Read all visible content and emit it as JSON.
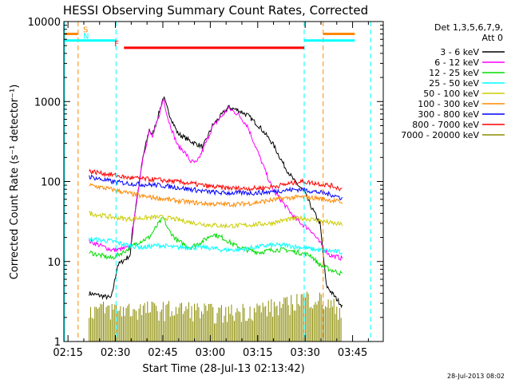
{
  "chart_data": {
    "type": "line",
    "title": "HESSI Observing Summary Count Rates, Corrected",
    "xlabel": "Start Time (28-Jul-13 02:13:42)",
    "ylabel": "Corrected Count Rate (s⁻¹ detector⁻¹)",
    "yscale": "log",
    "ylim": [
      1,
      10000
    ],
    "xlim_minutes": [
      0,
      101
    ],
    "xticks": [
      {
        "label": "02:15",
        "minute": 1.3
      },
      {
        "label": "02:30",
        "minute": 16.3
      },
      {
        "label": "02:45",
        "minute": 31.3
      },
      {
        "label": "03:00",
        "minute": 46.3
      },
      {
        "label": "03:15",
        "minute": 61.3
      },
      {
        "label": "03:30",
        "minute": 76.3
      },
      {
        "label": "03:45",
        "minute": 91.3
      }
    ],
    "yticks": [
      {
        "label": "1",
        "value": 1
      },
      {
        "label": "10",
        "value": 10
      },
      {
        "label": "100",
        "value": 100
      },
      {
        "label": "1000",
        "value": 1000
      },
      {
        "label": "10000",
        "value": 10000
      }
    ],
    "legend_header": [
      "Det 1,3,5,6,7,9,",
      "Att 0"
    ],
    "legend_position": "right",
    "series": [
      {
        "name": "3 - 6 keV",
        "color": "#000000",
        "points": [
          [
            8,
            4
          ],
          [
            15,
            3.5
          ],
          [
            17,
            9
          ],
          [
            21,
            12
          ],
          [
            22,
            30
          ],
          [
            25,
            200
          ],
          [
            27,
            450
          ],
          [
            28,
            380
          ],
          [
            30,
            700
          ],
          [
            31.5,
            1150
          ],
          [
            33,
            750
          ],
          [
            36,
            400
          ],
          [
            40,
            320
          ],
          [
            44,
            270
          ],
          [
            47,
            500
          ],
          [
            52,
            850
          ],
          [
            55,
            780
          ],
          [
            58,
            680
          ],
          [
            62,
            480
          ],
          [
            66,
            300
          ],
          [
            70,
            150
          ],
          [
            73,
            100
          ],
          [
            76,
            75
          ],
          [
            78,
            50
          ],
          [
            81,
            30
          ],
          [
            83,
            5
          ],
          [
            86,
            3.5
          ],
          [
            88,
            2.8
          ]
        ]
      },
      {
        "name": "6 - 12 keV",
        "color": "#ff00ff",
        "points": [
          [
            8,
            18
          ],
          [
            15,
            14
          ],
          [
            17,
            14
          ],
          [
            21,
            15
          ],
          [
            22,
            30
          ],
          [
            25,
            200
          ],
          [
            27,
            420
          ],
          [
            28,
            360
          ],
          [
            30,
            650
          ],
          [
            31.5,
            1100
          ],
          [
            33,
            600
          ],
          [
            36,
            280
          ],
          [
            38,
            240
          ],
          [
            40,
            180
          ],
          [
            42,
            170
          ],
          [
            44,
            250
          ],
          [
            47,
            480
          ],
          [
            52,
            820
          ],
          [
            55,
            700
          ],
          [
            58,
            500
          ],
          [
            62,
            200
          ],
          [
            66,
            80
          ],
          [
            70,
            50
          ],
          [
            73,
            35
          ],
          [
            76,
            28
          ],
          [
            78,
            25
          ],
          [
            81,
            17
          ],
          [
            84,
            12
          ],
          [
            88,
            11
          ]
        ]
      },
      {
        "name": "12 - 25 keV",
        "color": "#00dd00",
        "points": [
          [
            8,
            13
          ],
          [
            15,
            11
          ],
          [
            17,
            12
          ],
          [
            20,
            14
          ],
          [
            23,
            17
          ],
          [
            27,
            20
          ],
          [
            30,
            30
          ],
          [
            31.5,
            35
          ],
          [
            33,
            25
          ],
          [
            36,
            18
          ],
          [
            40,
            15
          ],
          [
            44,
            18
          ],
          [
            47,
            22
          ],
          [
            50,
            20
          ],
          [
            54,
            16
          ],
          [
            58,
            14
          ],
          [
            62,
            13
          ],
          [
            66,
            14
          ],
          [
            70,
            14
          ],
          [
            74,
            13
          ],
          [
            78,
            12
          ],
          [
            81,
            9
          ],
          [
            84,
            8
          ],
          [
            88,
            7
          ]
        ]
      },
      {
        "name": "25 - 50 keV",
        "color": "#00ffff",
        "points": [
          [
            8,
            19
          ],
          [
            15,
            18
          ],
          [
            20,
            16
          ],
          [
            25,
            15
          ],
          [
            30,
            16
          ],
          [
            35,
            15
          ],
          [
            40,
            15
          ],
          [
            45,
            15
          ],
          [
            50,
            14
          ],
          [
            55,
            14
          ],
          [
            60,
            15
          ],
          [
            65,
            16
          ],
          [
            70,
            16
          ],
          [
            75,
            15
          ],
          [
            80,
            14
          ],
          [
            85,
            13.5
          ],
          [
            88,
            13
          ]
        ]
      },
      {
        "name": "50 - 100 keV",
        "color": "#cccc00",
        "points": [
          [
            8,
            40
          ],
          [
            15,
            36
          ],
          [
            20,
            34
          ],
          [
            25,
            35
          ],
          [
            30,
            36
          ],
          [
            35,
            34
          ],
          [
            40,
            31
          ],
          [
            45,
            29
          ],
          [
            50,
            28
          ],
          [
            55,
            28
          ],
          [
            60,
            29
          ],
          [
            65,
            30
          ],
          [
            70,
            33
          ],
          [
            75,
            35
          ],
          [
            80,
            33
          ],
          [
            85,
            30
          ],
          [
            88,
            29
          ]
        ]
      },
      {
        "name": "100 - 300 keV",
        "color": "#ff8800",
        "points": [
          [
            8,
            90
          ],
          [
            15,
            80
          ],
          [
            20,
            72
          ],
          [
            25,
            65
          ],
          [
            30,
            62
          ],
          [
            35,
            58
          ],
          [
            40,
            55
          ],
          [
            45,
            53
          ],
          [
            50,
            52
          ],
          [
            55,
            52
          ],
          [
            60,
            54
          ],
          [
            65,
            58
          ],
          [
            70,
            62
          ],
          [
            75,
            64
          ],
          [
            80,
            62
          ],
          [
            85,
            58
          ],
          [
            88,
            55
          ]
        ]
      },
      {
        "name": "300 - 800 keV",
        "color": "#0000ff",
        "points": [
          [
            8,
            115
          ],
          [
            15,
            100
          ],
          [
            20,
            95
          ],
          [
            25,
            92
          ],
          [
            30,
            90
          ],
          [
            35,
            85
          ],
          [
            40,
            80
          ],
          [
            45,
            75
          ],
          [
            50,
            72
          ],
          [
            55,
            72
          ],
          [
            60,
            72
          ],
          [
            65,
            74
          ],
          [
            70,
            78
          ],
          [
            75,
            80
          ],
          [
            80,
            74
          ],
          [
            85,
            68
          ],
          [
            88,
            62
          ]
        ]
      },
      {
        "name": "800 - 7000 keV",
        "color": "#ff0000",
        "points": [
          [
            8,
            135
          ],
          [
            15,
            122
          ],
          [
            20,
            112
          ],
          [
            25,
            108
          ],
          [
            30,
            105
          ],
          [
            35,
            100
          ],
          [
            40,
            95
          ],
          [
            45,
            88
          ],
          [
            50,
            84
          ],
          [
            55,
            82
          ],
          [
            60,
            82
          ],
          [
            65,
            85
          ],
          [
            70,
            92
          ],
          [
            75,
            100
          ],
          [
            80,
            95
          ],
          [
            85,
            88
          ],
          [
            88,
            80
          ]
        ]
      },
      {
        "name": "7000 - 20000 keV",
        "color": "#8b8b00",
        "points": [
          [
            8,
            1.8
          ],
          [
            20,
            1.8
          ],
          [
            30,
            1.8
          ],
          [
            40,
            1.8
          ],
          [
            50,
            1.6
          ],
          [
            60,
            1.8
          ],
          [
            70,
            2
          ],
          [
            75,
            2.5
          ],
          [
            80,
            2.5
          ],
          [
            84,
            2
          ],
          [
            88,
            1.8
          ]
        ]
      }
    ],
    "markers": [
      {
        "label": "S",
        "color": "#ff8800",
        "level": 7000,
        "segments": [
          [
            0,
            4.5
          ],
          [
            82,
            92
          ]
        ],
        "dashed_at": [
          4.5,
          82
        ]
      },
      {
        "label": "N",
        "color": "#00ffff",
        "level": 5800,
        "segments": [
          [
            0,
            16.5
          ],
          [
            76,
            92
          ]
        ],
        "dashed_at": [
          16.5,
          76
        ]
      },
      {
        "label": "F",
        "color": "#ff0000",
        "level": 4700,
        "segments": [
          [
            19,
            76
          ]
        ],
        "dashed_at": []
      }
    ],
    "timestamp": "28-Jul-2013 08:02"
  }
}
